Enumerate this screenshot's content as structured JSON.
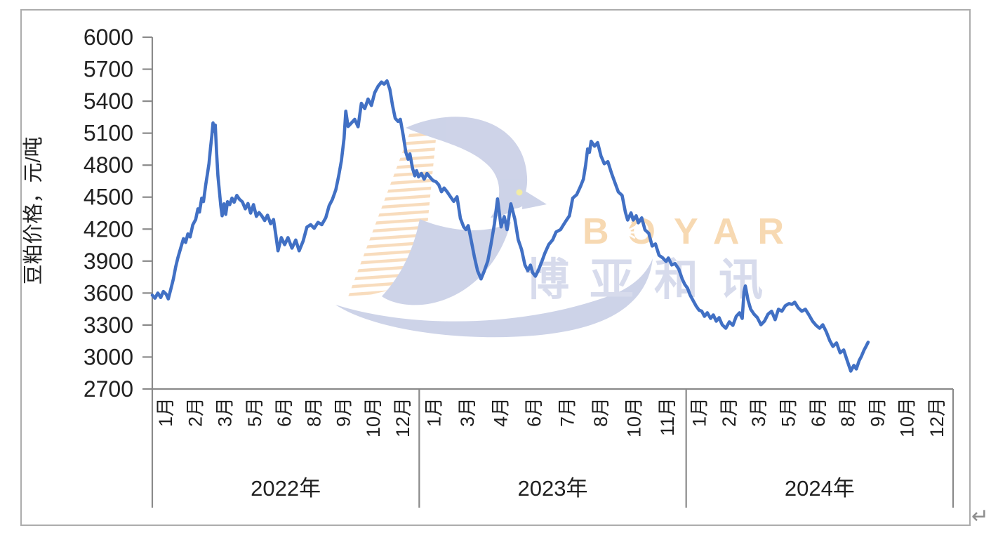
{
  "figure": {
    "return_mark": "↵"
  },
  "watermark": {
    "brand_latin": "BOYAR",
    "brand_cn": "博亚和讯",
    "colors": {
      "stripes": "#F5CEA2",
      "bird": "#CBD1E7",
      "latin": "#F7D7AE",
      "cn": "#D5DAEC",
      "eye": "#F2ECA0",
      "starburst": "#FFFFFF"
    }
  },
  "chart_data": {
    "type": "line",
    "title": "",
    "ylabel": "豆粕价格，元/吨",
    "xlabel": "",
    "ylim": [
      2700,
      6000
    ],
    "ytick_step": 300,
    "yticks": [
      6000,
      5700,
      5400,
      5100,
      4800,
      4500,
      4200,
      3900,
      3600,
      3300,
      3000,
      2700
    ],
    "grid": false,
    "legend_position": "none",
    "colors": {
      "line": "#4170C4",
      "axis": "#8A8A8A",
      "text": "#212121"
    },
    "x_axis": {
      "unit": "months from Jan 2022 (0 = 2022-01-01, 36 = end of 2024)",
      "range": [
        0,
        36
      ],
      "years": [
        {
          "label": "2022年",
          "month_labels": [
            "1月",
            "2月",
            "3月",
            "5月",
            "6月",
            "8月",
            "9月",
            "10月",
            "12月"
          ]
        },
        {
          "label": "2023年",
          "month_labels": [
            "1月",
            "3月",
            "4月",
            "6月",
            "7月",
            "8月",
            "10月",
            "11月"
          ]
        },
        {
          "label": "2024年",
          "month_labels": [
            "1月",
            "2月",
            "3月",
            "5月",
            "6月",
            "8月",
            "9月",
            "10月",
            "12月"
          ]
        }
      ]
    },
    "series": [
      {
        "name": "豆粕价格",
        "points": [
          [
            0.0,
            3580
          ],
          [
            0.12,
            3552
          ],
          [
            0.25,
            3600
          ],
          [
            0.38,
            3558
          ],
          [
            0.5,
            3615
          ],
          [
            0.62,
            3590
          ],
          [
            0.72,
            3545
          ],
          [
            0.85,
            3650
          ],
          [
            0.95,
            3735
          ],
          [
            1.05,
            3845
          ],
          [
            1.15,
            3930
          ],
          [
            1.28,
            4025
          ],
          [
            1.4,
            4110
          ],
          [
            1.5,
            4075
          ],
          [
            1.6,
            4155
          ],
          [
            1.7,
            4127
          ],
          [
            1.82,
            4240
          ],
          [
            1.95,
            4290
          ],
          [
            2.05,
            4390
          ],
          [
            2.12,
            4360
          ],
          [
            2.22,
            4490
          ],
          [
            2.3,
            4458
          ],
          [
            2.4,
            4615
          ],
          [
            2.48,
            4720
          ],
          [
            2.55,
            4815
          ],
          [
            2.62,
            4965
          ],
          [
            2.68,
            5080
          ],
          [
            2.73,
            5196
          ],
          [
            2.78,
            5117
          ],
          [
            2.83,
            5176
          ],
          [
            2.89,
            4919
          ],
          [
            2.95,
            4700
          ],
          [
            3.02,
            4549
          ],
          [
            3.08,
            4417
          ],
          [
            3.14,
            4325
          ],
          [
            3.22,
            4437
          ],
          [
            3.3,
            4338
          ],
          [
            3.38,
            4457
          ],
          [
            3.48,
            4430
          ],
          [
            3.58,
            4490
          ],
          [
            3.68,
            4452
          ],
          [
            3.8,
            4516
          ],
          [
            3.92,
            4480
          ],
          [
            4.05,
            4455
          ],
          [
            4.18,
            4390
          ],
          [
            4.3,
            4440
          ],
          [
            4.42,
            4350
          ],
          [
            4.55,
            4430
          ],
          [
            4.68,
            4320
          ],
          [
            4.8,
            4355
          ],
          [
            4.92,
            4325
          ],
          [
            5.05,
            4280
          ],
          [
            5.18,
            4330
          ],
          [
            5.32,
            4250
          ],
          [
            5.45,
            4290
          ],
          [
            5.55,
            4150
          ],
          [
            5.65,
            3996
          ],
          [
            5.8,
            4120
          ],
          [
            5.95,
            4054
          ],
          [
            6.1,
            4120
          ],
          [
            6.28,
            4021
          ],
          [
            6.45,
            4098
          ],
          [
            6.6,
            3996
          ],
          [
            6.78,
            4087
          ],
          [
            6.95,
            4219
          ],
          [
            7.12,
            4241
          ],
          [
            7.28,
            4208
          ],
          [
            7.45,
            4263
          ],
          [
            7.62,
            4241
          ],
          [
            7.8,
            4307
          ],
          [
            7.95,
            4420
          ],
          [
            8.1,
            4480
          ],
          [
            8.25,
            4570
          ],
          [
            8.38,
            4700
          ],
          [
            8.5,
            4840
          ],
          [
            8.62,
            5050
          ],
          [
            8.7,
            5306
          ],
          [
            8.8,
            5163
          ],
          [
            8.95,
            5196
          ],
          [
            9.1,
            5230
          ],
          [
            9.25,
            5160
          ],
          [
            9.4,
            5380
          ],
          [
            9.55,
            5330
          ],
          [
            9.7,
            5420
          ],
          [
            9.85,
            5360
          ],
          [
            10.0,
            5480
          ],
          [
            10.15,
            5540
          ],
          [
            10.3,
            5580
          ],
          [
            10.42,
            5560
          ],
          [
            10.55,
            5590
          ],
          [
            10.68,
            5510
          ],
          [
            10.8,
            5360
          ],
          [
            10.92,
            5240
          ],
          [
            11.05,
            5210
          ],
          [
            11.15,
            5230
          ],
          [
            11.28,
            5080
          ],
          [
            11.4,
            4920
          ],
          [
            11.5,
            4855
          ],
          [
            11.58,
            4905
          ],
          [
            11.7,
            4770
          ],
          [
            11.8,
            4700
          ],
          [
            11.88,
            4748
          ],
          [
            11.97,
            4690
          ],
          [
            12.1,
            4722
          ],
          [
            12.22,
            4668
          ],
          [
            12.35,
            4722
          ],
          [
            12.48,
            4688
          ],
          [
            12.62,
            4655
          ],
          [
            12.75,
            4645
          ],
          [
            12.88,
            4615
          ],
          [
            13.0,
            4550
          ],
          [
            13.12,
            4585
          ],
          [
            13.25,
            4550
          ],
          [
            13.4,
            4505
          ],
          [
            13.55,
            4460
          ],
          [
            13.7,
            4503
          ],
          [
            13.85,
            4300
          ],
          [
            14.0,
            4220
          ],
          [
            14.1,
            4195
          ],
          [
            14.2,
            4232
          ],
          [
            14.32,
            4110
          ],
          [
            14.48,
            3940
          ],
          [
            14.62,
            3810
          ],
          [
            14.78,
            3732
          ],
          [
            14.92,
            3805
          ],
          [
            15.08,
            3900
          ],
          [
            15.22,
            4050
          ],
          [
            15.38,
            4250
          ],
          [
            15.52,
            4483
          ],
          [
            15.6,
            4355
          ],
          [
            15.68,
            4220
          ],
          [
            15.82,
            4318
          ],
          [
            15.95,
            4195
          ],
          [
            16.12,
            4437
          ],
          [
            16.3,
            4292
          ],
          [
            16.45,
            4100
          ],
          [
            16.6,
            4009
          ],
          [
            16.75,
            3864
          ],
          [
            16.88,
            3811
          ],
          [
            17.0,
            3862
          ],
          [
            17.1,
            3790
          ],
          [
            17.22,
            3758
          ],
          [
            17.35,
            3811
          ],
          [
            17.5,
            3890
          ],
          [
            17.65,
            3975
          ],
          [
            17.82,
            4054
          ],
          [
            18.0,
            4100
          ],
          [
            18.15,
            4173
          ],
          [
            18.35,
            4195
          ],
          [
            18.58,
            4272
          ],
          [
            18.75,
            4325
          ],
          [
            18.9,
            4490
          ],
          [
            19.08,
            4523
          ],
          [
            19.25,
            4600
          ],
          [
            19.38,
            4668
          ],
          [
            19.48,
            4800
          ],
          [
            19.57,
            4952
          ],
          [
            19.65,
            4920
          ],
          [
            19.73,
            5024
          ],
          [
            19.88,
            4978
          ],
          [
            20.02,
            5011
          ],
          [
            20.17,
            4886
          ],
          [
            20.32,
            4813
          ],
          [
            20.48,
            4833
          ],
          [
            20.65,
            4721
          ],
          [
            20.8,
            4635
          ],
          [
            20.95,
            4549
          ],
          [
            21.12,
            4516
          ],
          [
            21.27,
            4358
          ],
          [
            21.37,
            4285
          ],
          [
            21.52,
            4352
          ],
          [
            21.62,
            4285
          ],
          [
            21.75,
            4325
          ],
          [
            21.85,
            4259
          ],
          [
            22.0,
            4305
          ],
          [
            22.15,
            4193
          ],
          [
            22.32,
            4160
          ],
          [
            22.47,
            4041
          ],
          [
            22.62,
            4061
          ],
          [
            22.78,
            3955
          ],
          [
            22.95,
            3929
          ],
          [
            23.1,
            3896
          ],
          [
            23.2,
            3929
          ],
          [
            23.35,
            3864
          ],
          [
            23.5,
            3877
          ],
          [
            23.67,
            3824
          ],
          [
            23.82,
            3732
          ],
          [
            23.94,
            3680
          ],
          [
            24.06,
            3646
          ],
          [
            24.18,
            3580
          ],
          [
            24.3,
            3534
          ],
          [
            24.44,
            3481
          ],
          [
            24.58,
            3440
          ],
          [
            24.7,
            3430
          ],
          [
            24.82,
            3382
          ],
          [
            24.95,
            3415
          ],
          [
            25.1,
            3362
          ],
          [
            25.22,
            3395
          ],
          [
            25.35,
            3336
          ],
          [
            25.48,
            3369
          ],
          [
            25.62,
            3303
          ],
          [
            25.78,
            3270
          ],
          [
            25.94,
            3330
          ],
          [
            26.1,
            3297
          ],
          [
            26.25,
            3382
          ],
          [
            26.4,
            3415
          ],
          [
            26.52,
            3362
          ],
          [
            26.6,
            3613
          ],
          [
            26.66,
            3666
          ],
          [
            26.78,
            3534
          ],
          [
            26.9,
            3448
          ],
          [
            27.05,
            3402
          ],
          [
            27.2,
            3369
          ],
          [
            27.36,
            3303
          ],
          [
            27.52,
            3336
          ],
          [
            27.68,
            3402
          ],
          [
            27.84,
            3429
          ],
          [
            28.0,
            3350
          ],
          [
            28.15,
            3448
          ],
          [
            28.3,
            3429
          ],
          [
            28.46,
            3481
          ],
          [
            28.62,
            3501
          ],
          [
            28.76,
            3494
          ],
          [
            28.88,
            3514
          ],
          [
            29.04,
            3461
          ],
          [
            29.2,
            3429
          ],
          [
            29.36,
            3448
          ],
          [
            29.52,
            3395
          ],
          [
            29.68,
            3336
          ],
          [
            29.84,
            3297
          ],
          [
            30.0,
            3270
          ],
          [
            30.14,
            3303
          ],
          [
            30.3,
            3237
          ],
          [
            30.46,
            3152
          ],
          [
            30.6,
            3099
          ],
          [
            30.76,
            3132
          ],
          [
            30.92,
            3040
          ],
          [
            31.08,
            3066
          ],
          [
            31.24,
            2967
          ],
          [
            31.4,
            2868
          ],
          [
            31.54,
            2921
          ],
          [
            31.65,
            2888
          ],
          [
            31.78,
            2967
          ],
          [
            31.88,
            3007
          ],
          [
            32.0,
            3066
          ],
          [
            32.1,
            3106
          ],
          [
            32.18,
            3139
          ]
        ]
      }
    ]
  }
}
